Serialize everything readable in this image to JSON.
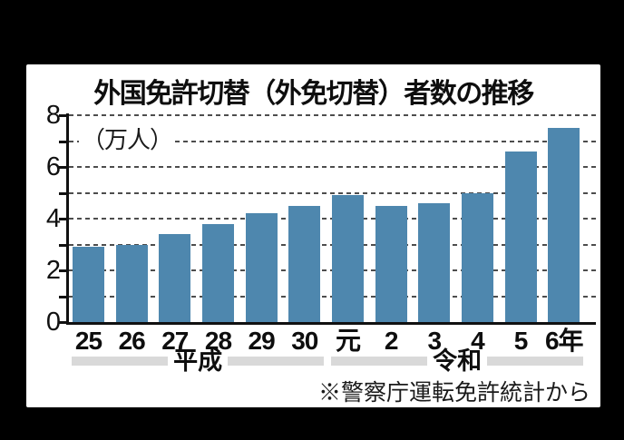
{
  "colors": {
    "page_background": "#000000",
    "panel_background": "#ffffff",
    "bar": "#4e87ae",
    "era_band": "#d9d9d9",
    "grid": "#4d4d4d",
    "axis": "#111111"
  },
  "chart": {
    "title": "外国免許切替（外免切替）者数の推移",
    "unit_label": "（万人）",
    "source_note": "※警察庁運転免許統計から"
  },
  "chart_data": {
    "type": "bar",
    "title": "外国免許切替（外免切替）者数の推移",
    "ylabel": "万人",
    "categories": [
      "25",
      "26",
      "27",
      "28",
      "29",
      "30",
      "元",
      "2",
      "3",
      "4",
      "5",
      "6年"
    ],
    "values": [
      2.9,
      3.0,
      3.4,
      3.8,
      4.2,
      4.5,
      4.9,
      4.5,
      4.6,
      5.0,
      6.6,
      7.5
    ],
    "ylim": [
      0,
      8
    ],
    "yticks": [
      0,
      2,
      4,
      6,
      8
    ],
    "minor_tick_step": 1,
    "grid": "horizontal dashed lines at every 1 unit",
    "legend_position": "none",
    "era_groups": [
      {
        "label": "平成",
        "from_index": 0,
        "to_index": 5
      },
      {
        "label": "令和",
        "from_index": 6,
        "to_index": 11
      }
    ],
    "source": "※警察庁運転免許統計から"
  }
}
